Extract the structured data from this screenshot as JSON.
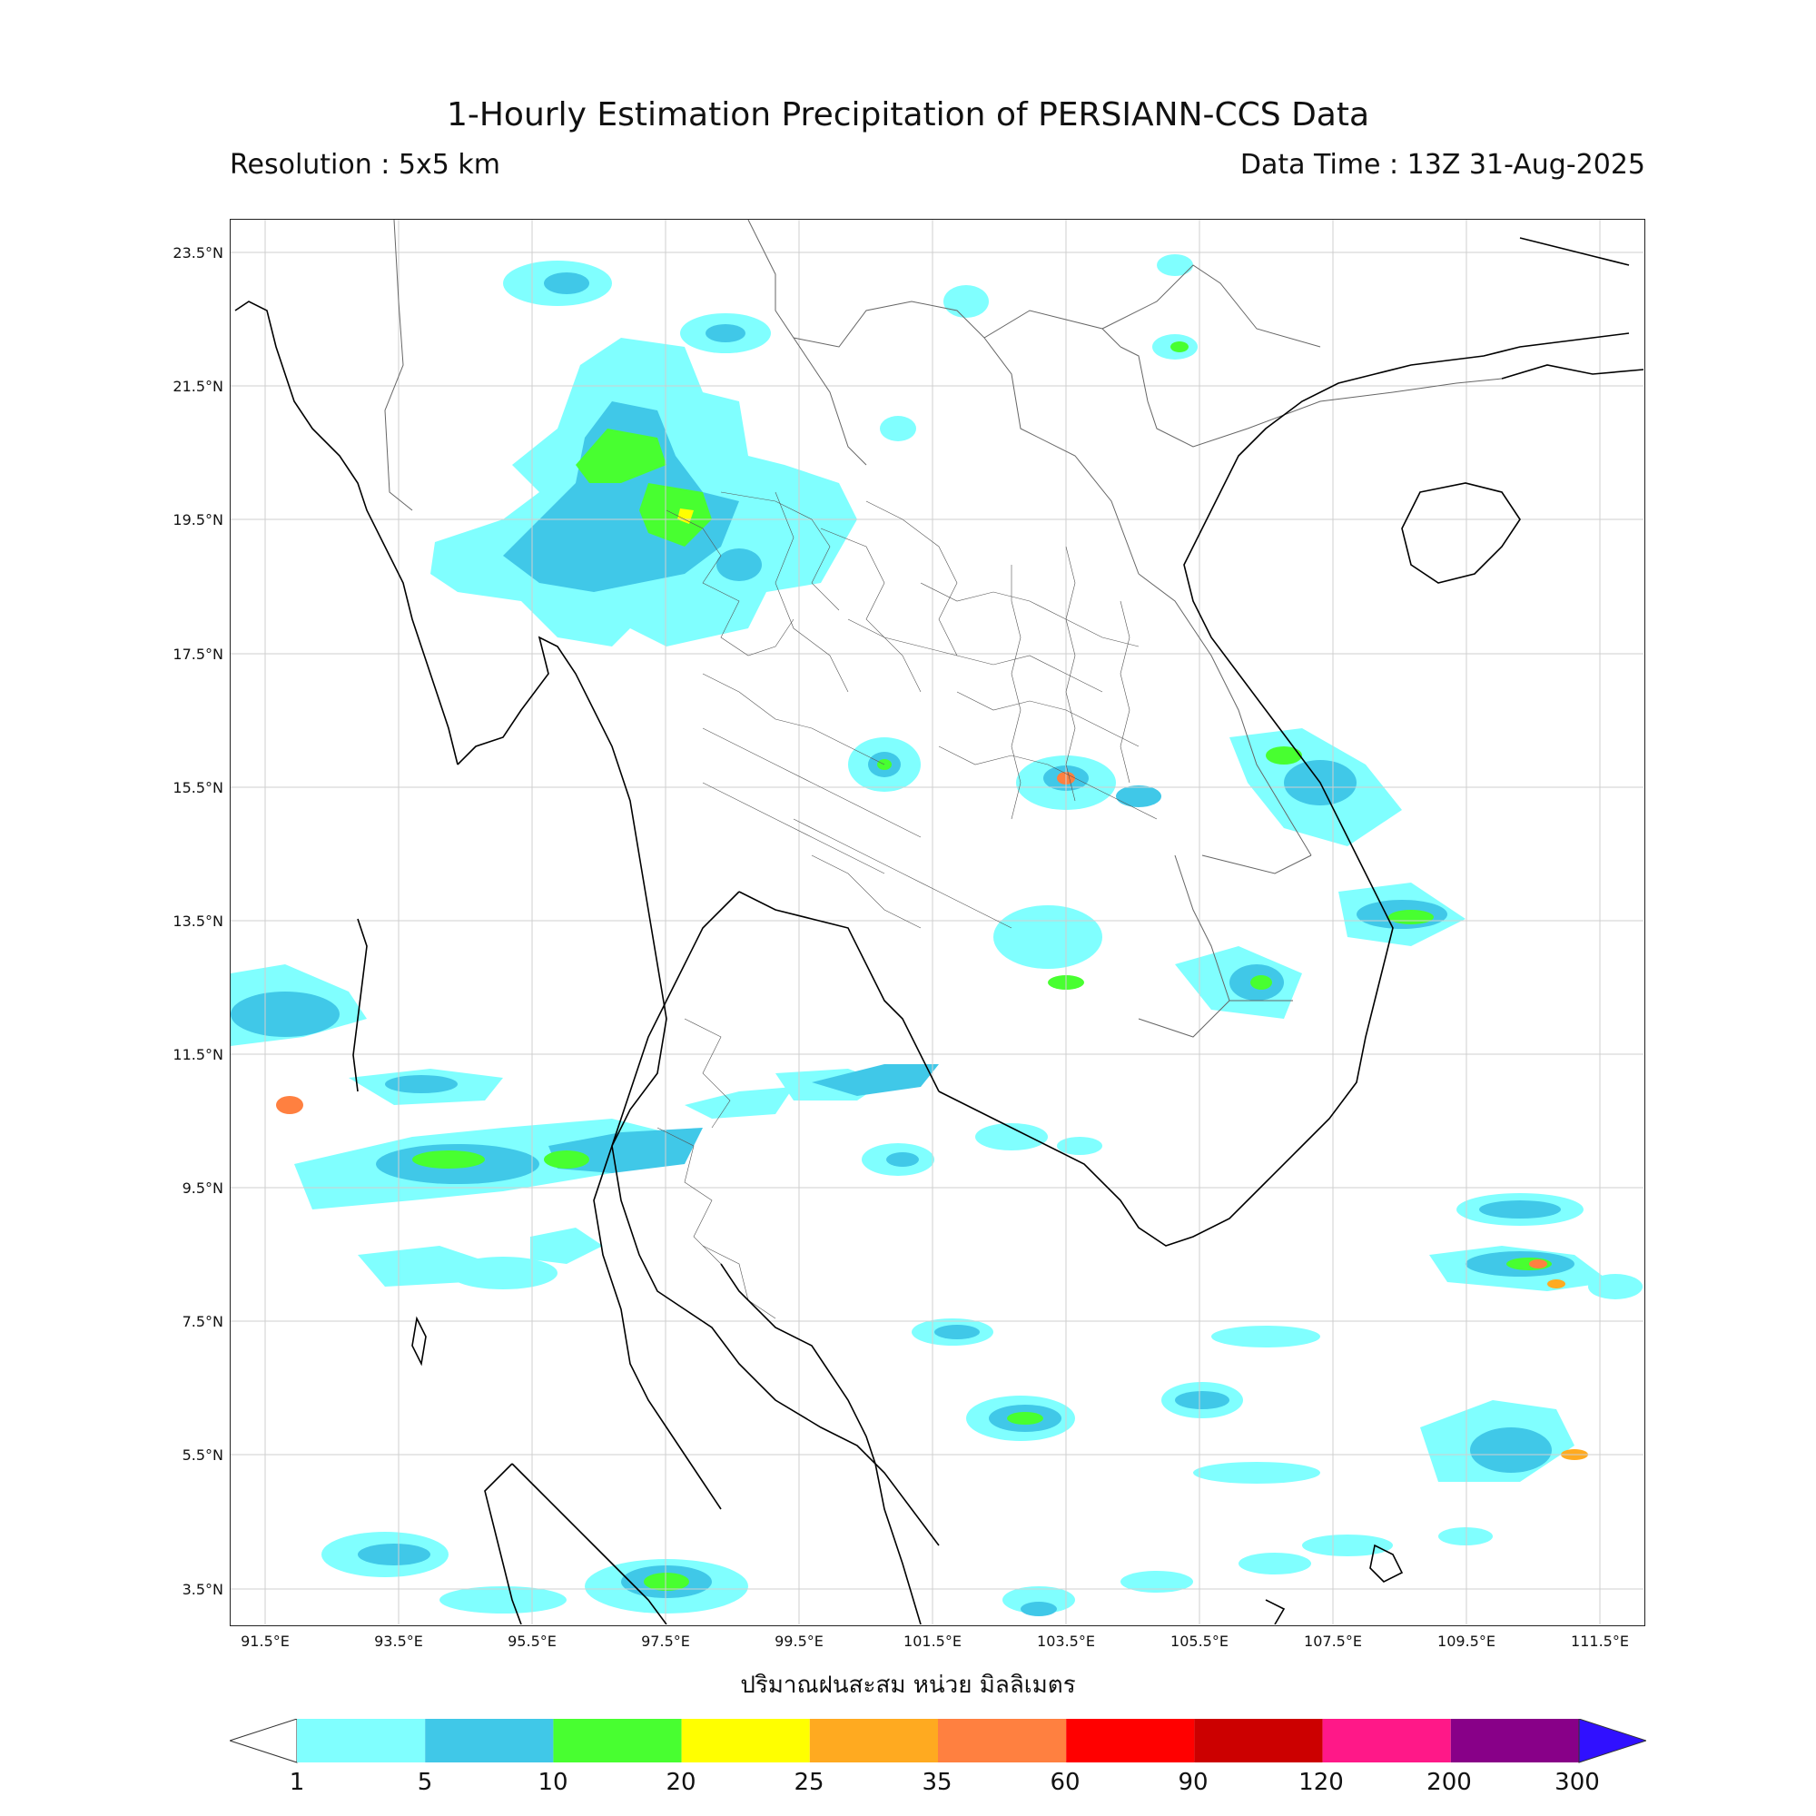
{
  "header": {
    "title": "1-Hourly Estimation Precipitation of PERSIANN-CCS Data",
    "resolution": "Resolution : 5x5 km",
    "data_time": "Data Time : 13Z 31-Aug-2025"
  },
  "map": {
    "lat_ticks": [
      "23.5°N",
      "21.5°N",
      "19.5°N",
      "17.5°N",
      "15.5°N",
      "13.5°N",
      "11.5°N",
      "9.5°N",
      "7.5°N",
      "5.5°N",
      "3.5°N"
    ],
    "lon_ticks": [
      "91.5°E",
      "93.5°E",
      "95.5°E",
      "97.5°E",
      "99.5°E",
      "101.5°E",
      "103.5°E",
      "105.5°E",
      "107.5°E",
      "109.5°E",
      "111.5°E"
    ],
    "xlabel": "ปริมาณฝนสะสม หน่วย มิลลิเมตร",
    "water_color": "#ffffff",
    "coast_color": "#000000",
    "grid": true
  },
  "colorbar": {
    "ticks": [
      "1",
      "5",
      "10",
      "20",
      "25",
      "35",
      "60",
      "90",
      "120",
      "200",
      "300"
    ],
    "colors": [
      "#80ffff",
      "#40c8e8",
      "#48ff30",
      "#ffff00",
      "#ffaa20",
      "#ff8040",
      "#ff0000",
      "#cc0000",
      "#ff1888",
      "#880088"
    ],
    "over_color": "#3010ff",
    "under_color": "#ffffff"
  }
}
